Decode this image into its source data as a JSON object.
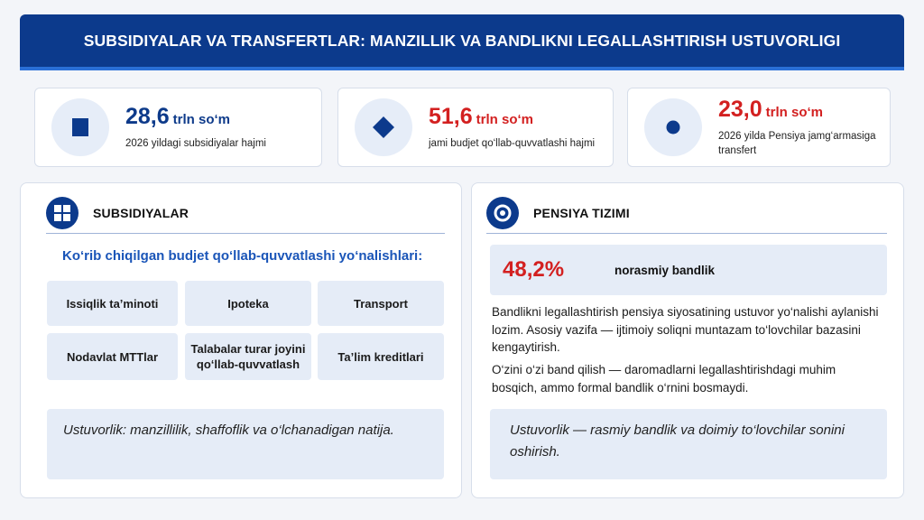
{
  "header": {
    "title": "SUBSIDIYALAR VA TRANSFERTLAR: MANZILLIK VA BANDLIKNI LEGALLASHTIRISH USTUVORLIGI"
  },
  "stats": [
    {
      "value": "28,6",
      "unit": "trln so‘m",
      "description": "2026 yildagi subsidiyalar hajmi",
      "icon": "square-icon"
    },
    {
      "value": "51,6",
      "unit": "trln so‘m",
      "description": "jami budjet qo‘llab-quvvatlashi hajmi",
      "icon": "diamond-icon"
    },
    {
      "value": "23,0",
      "unit": "trln so‘m",
      "description": "2026 yilda Pensiya jamg‘armasiga transfert",
      "icon": "circle-icon"
    }
  ],
  "colors": {
    "navy": "#0c3a8c",
    "accent_red": "#d32020",
    "accent_blue": "#1a55b8",
    "chip_bg": "#e5ecf7"
  },
  "subsidies": {
    "title": "SUBSIDIYALAR",
    "subtitle": "Ko‘rib chiqilgan budjet qo‘llab-quvvatlashi yo‘nalishlari:",
    "items": [
      "Issiqlik ta’minoti",
      "Ipoteka",
      "Transport",
      "Nodavlat MTTlar",
      "Talabalar turar joyini qo‘llab-quvvatlash",
      "Ta’lim kreditlari"
    ],
    "note": "Ustuvorlik: manzillilik, shaffoflik va o‘lchanadigan natija."
  },
  "pension": {
    "title": "PENSIYA TIZIMI",
    "percent": "48,2%",
    "percent_label": "norasmiy bandlik",
    "paragraph1": "Bandlikni legallashtirish pensiya siyosatining ustuvor yo‘nalishi aylanishi lozim. Asosiy vazifa — ijtimoiy soliqni muntazam to‘lovchilar bazasini kengaytirish.",
    "paragraph2": "O‘zini o‘zi band qilish — daromadlarni legallashtirishdagi muhim bosqich, ammo formal bandlik o‘rnini bosmaydi.",
    "note": "Ustuvorlik —  rasmiy bandlik va doimiy to‘lovchilar sonini oshirish."
  }
}
